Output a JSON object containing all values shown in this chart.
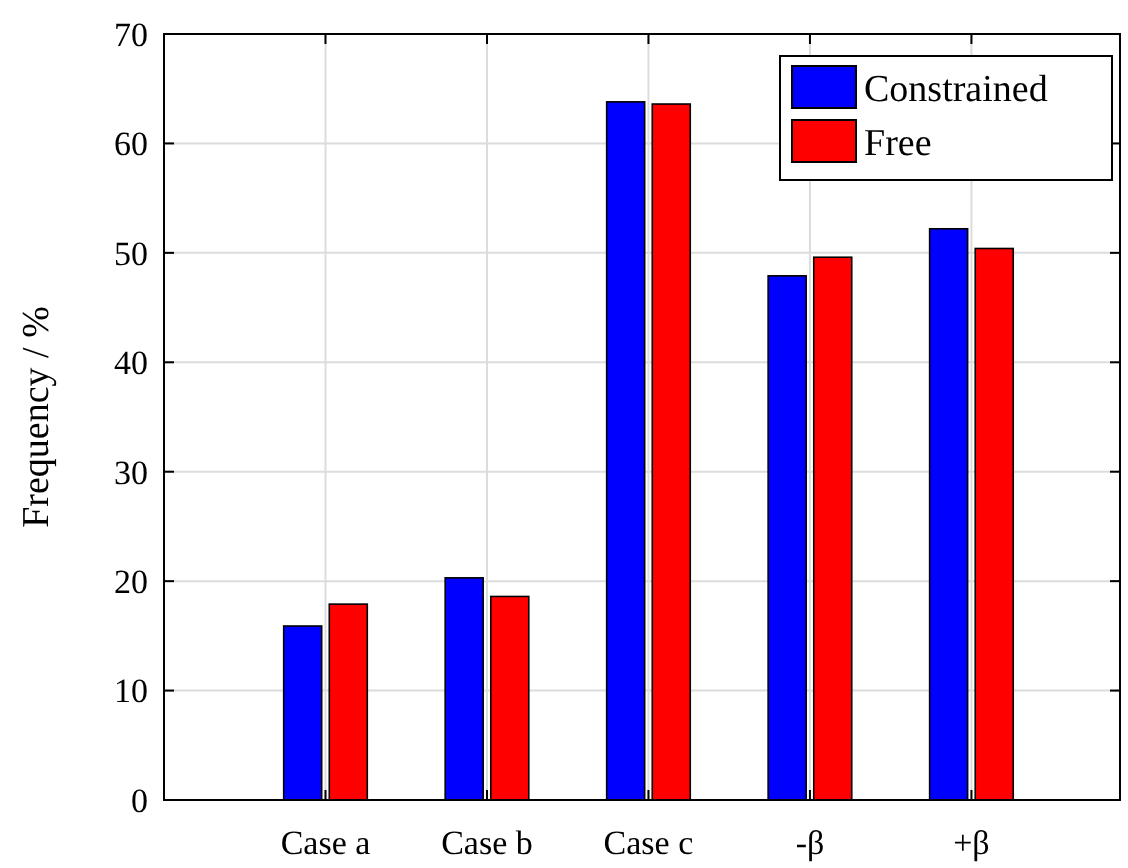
{
  "chart_data": {
    "type": "bar",
    "ylabel": "Frequency / %",
    "categories": [
      "Case a",
      "Case b",
      "Case c",
      "-β",
      "+β"
    ],
    "series": [
      {
        "name": "Constrained",
        "color": "#0000ff",
        "values": [
          15.9,
          20.3,
          63.8,
          47.9,
          52.2
        ]
      },
      {
        "name": "Free",
        "color": "#ff0000",
        "values": [
          17.9,
          18.6,
          63.6,
          49.6,
          50.4
        ]
      }
    ],
    "ylim": [
      0,
      70
    ],
    "yticks": [
      0,
      10,
      20,
      30,
      40,
      50,
      60,
      70
    ],
    "grid": true,
    "legend": "top right"
  }
}
